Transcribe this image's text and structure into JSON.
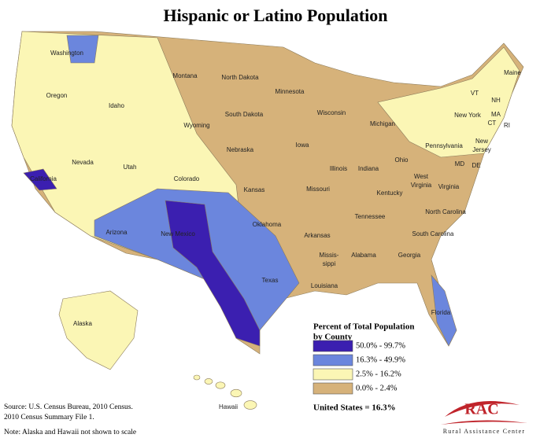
{
  "title": "Hispanic or Latino Population",
  "state_labels": [
    [
      "Washington"
    ],
    [
      "Oregon"
    ],
    [
      "California"
    ],
    [
      "Nevada"
    ],
    [
      "Idaho"
    ],
    [
      "Montana"
    ],
    [
      "Wyoming"
    ],
    [
      "Utah"
    ],
    [
      "Arizona"
    ],
    [
      "Colorado"
    ],
    [
      "New Mexico"
    ],
    [
      "North Dakota"
    ],
    [
      "South Dakota"
    ],
    [
      "Nebraska"
    ],
    [
      "Kansas"
    ],
    [
      "Oklahoma"
    ],
    [
      "Texas"
    ],
    [
      "Minnesota"
    ],
    [
      "Iowa"
    ],
    [
      "Missouri"
    ],
    [
      "Arkansas"
    ],
    [
      "Louisiana"
    ],
    [
      "Wisconsin"
    ],
    [
      "Illinois"
    ],
    [
      "Michigan"
    ],
    [
      "Indiana"
    ],
    [
      "Ohio"
    ],
    [
      "Kentucky"
    ],
    [
      "Tennessee"
    ],
    [
      "Missis-",
      "sippi"
    ],
    [
      "Alabama"
    ],
    [
      "Georgia"
    ],
    [
      "Florida"
    ],
    [
      "South Carolina"
    ],
    [
      "North Carolina"
    ],
    [
      "Virginia"
    ],
    [
      "West",
      "Virginia"
    ],
    [
      "Pennsylvania"
    ],
    [
      "New York"
    ],
    [
      "Maine"
    ],
    [
      "VT"
    ],
    [
      "NH"
    ],
    [
      "MA"
    ],
    [
      "CT"
    ],
    [
      "RI"
    ],
    [
      "New",
      "Jersey"
    ],
    [
      "DE"
    ],
    [
      "MD"
    ],
    [
      "Alaska"
    ],
    [
      "Hawaii"
    ]
  ],
  "legend": {
    "title": [
      "Percent of Total Population",
      "by County"
    ],
    "items": [
      {
        "label": "50.0% - 99.7%",
        "color": "#3b1fb0"
      },
      {
        "label": "16.3% - 49.9%",
        "color": "#6b86dd"
      },
      {
        "label": "2.5% - 16.2%",
        "color": "#fbf6b5"
      },
      {
        "label": "0.0% - 2.4%",
        "color": "#d6b27a"
      }
    ]
  },
  "us_total": "United States = 16.3%",
  "source": [
    "Source: U.S. Census Bureau, 2010 Census.",
    "2010 Census Summary File 1."
  ],
  "note": "Note: Alaska and Hawaii not shown to scale",
  "logo": {
    "mark": "RAC",
    "name": "Rural Assistance Center"
  }
}
